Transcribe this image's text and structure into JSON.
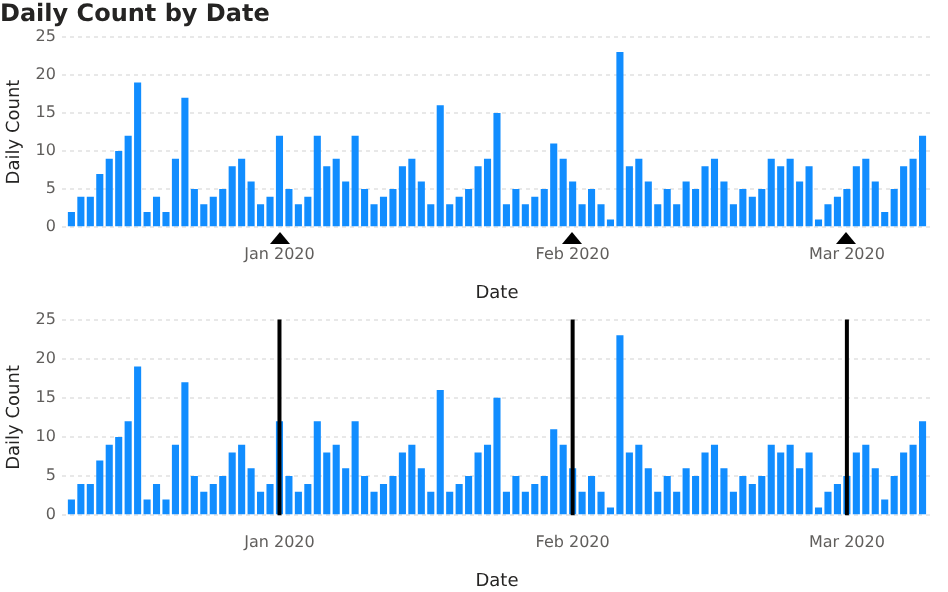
{
  "chart_data": [
    {
      "type": "bar",
      "title": "Daily Count by Date",
      "xlabel": "Date",
      "ylabel": "Daily Count",
      "color": "#118dff",
      "grid": "y",
      "x": [
        "2019-12-10",
        "2019-12-11",
        "2019-12-12",
        "2019-12-13",
        "2019-12-14",
        "2019-12-15",
        "2019-12-16",
        "2019-12-17",
        "2019-12-18",
        "2019-12-19",
        "2019-12-20",
        "2019-12-21",
        "2019-12-22",
        "2019-12-23",
        "2019-12-24",
        "2019-12-25",
        "2019-12-26",
        "2019-12-27",
        "2019-12-28",
        "2019-12-29",
        "2019-12-30",
        "2019-12-31",
        "2020-01-01",
        "2020-01-02",
        "2020-01-03",
        "2020-01-04",
        "2020-01-05",
        "2020-01-06",
        "2020-01-07",
        "2020-01-08",
        "2020-01-09",
        "2020-01-10",
        "2020-01-11",
        "2020-01-12",
        "2020-01-13",
        "2020-01-14",
        "2020-01-15",
        "2020-01-16",
        "2020-01-17",
        "2020-01-18",
        "2020-01-19",
        "2020-01-20",
        "2020-01-21",
        "2020-01-22",
        "2020-01-23",
        "2020-01-24",
        "2020-01-25",
        "2020-01-26",
        "2020-01-27",
        "2020-01-28",
        "2020-01-29",
        "2020-01-30",
        "2020-01-31",
        "2020-02-01",
        "2020-02-02",
        "2020-02-03",
        "2020-02-04",
        "2020-02-05",
        "2020-02-06",
        "2020-02-07",
        "2020-02-08",
        "2020-02-09",
        "2020-02-10",
        "2020-02-11",
        "2020-02-12",
        "2020-02-13",
        "2020-02-14",
        "2020-02-15",
        "2020-02-16",
        "2020-02-17",
        "2020-02-18",
        "2020-02-19",
        "2020-02-20",
        "2020-02-21",
        "2020-02-22",
        "2020-02-23",
        "2020-02-24",
        "2020-02-25",
        "2020-02-26",
        "2020-02-27",
        "2020-02-28",
        "2020-02-29",
        "2020-03-01",
        "2020-03-02",
        "2020-03-03",
        "2020-03-04",
        "2020-03-05",
        "2020-03-06",
        "2020-03-07",
        "2020-03-08",
        "2020-03-09"
      ],
      "values": [
        2,
        4,
        4,
        7,
        9,
        10,
        12,
        19,
        2,
        4,
        2,
        9,
        17,
        5,
        3,
        4,
        5,
        8,
        9,
        6,
        3,
        4,
        12,
        5,
        3,
        4,
        12,
        8,
        9,
        6,
        12,
        5,
        3,
        4,
        5,
        8,
        9,
        6,
        3,
        16,
        3,
        4,
        5,
        8,
        9,
        15,
        3,
        5,
        3,
        4,
        5,
        11,
        9,
        6,
        3,
        5,
        3,
        1,
        23,
        8,
        9,
        6,
        3,
        5,
        3,
        6,
        5,
        8,
        9,
        6,
        3,
        5,
        4,
        5,
        9,
        8,
        9,
        6,
        8,
        1,
        3,
        4,
        5,
        8,
        9,
        6,
        2,
        5,
        8,
        9,
        12
      ],
      "xlim": [
        "2019-12-09",
        "2020-03-10"
      ],
      "xticks": [
        {
          "value": "2020-01-01",
          "label": "Jan 2020"
        },
        {
          "value": "2020-02-01",
          "label": "Feb 2020"
        },
        {
          "value": "2020-03-01",
          "label": "Mar 2020"
        }
      ],
      "ylim": [
        0,
        25
      ],
      "yticks": [
        0,
        5,
        10,
        15,
        20,
        25
      ]
    },
    {
      "type": "bar",
      "xlabel": "Date",
      "ylabel": "Daily Count",
      "color": "#118dff",
      "grid": "y",
      "x": [
        "2019-12-10",
        "2019-12-11",
        "2019-12-12",
        "2019-12-13",
        "2019-12-14",
        "2019-12-15",
        "2019-12-16",
        "2019-12-17",
        "2019-12-18",
        "2019-12-19",
        "2019-12-20",
        "2019-12-21",
        "2019-12-22",
        "2019-12-23",
        "2019-12-24",
        "2019-12-25",
        "2019-12-26",
        "2019-12-27",
        "2019-12-28",
        "2019-12-29",
        "2019-12-30",
        "2019-12-31",
        "2020-01-01",
        "2020-01-02",
        "2020-01-03",
        "2020-01-04",
        "2020-01-05",
        "2020-01-06",
        "2020-01-07",
        "2020-01-08",
        "2020-01-09",
        "2020-01-10",
        "2020-01-11",
        "2020-01-12",
        "2020-01-13",
        "2020-01-14",
        "2020-01-15",
        "2020-01-16",
        "2020-01-17",
        "2020-01-18",
        "2020-01-19",
        "2020-01-20",
        "2020-01-21",
        "2020-01-22",
        "2020-01-23",
        "2020-01-24",
        "2020-01-25",
        "2020-01-26",
        "2020-01-27",
        "2020-01-28",
        "2020-01-29",
        "2020-01-30",
        "2020-01-31",
        "2020-02-01",
        "2020-02-02",
        "2020-02-03",
        "2020-02-04",
        "2020-02-05",
        "2020-02-06",
        "2020-02-07",
        "2020-02-08",
        "2020-02-09",
        "2020-02-10",
        "2020-02-11",
        "2020-02-12",
        "2020-02-13",
        "2020-02-14",
        "2020-02-15",
        "2020-02-16",
        "2020-02-17",
        "2020-02-18",
        "2020-02-19",
        "2020-02-20",
        "2020-02-21",
        "2020-02-22",
        "2020-02-23",
        "2020-02-24",
        "2020-02-25",
        "2020-02-26",
        "2020-02-27",
        "2020-02-28",
        "2020-02-29",
        "2020-03-01",
        "2020-03-02",
        "2020-03-03",
        "2020-03-04",
        "2020-03-05",
        "2020-03-06",
        "2020-03-07",
        "2020-03-08",
        "2020-03-09"
      ],
      "values": [
        2,
        4,
        4,
        7,
        9,
        10,
        12,
        19,
        2,
        4,
        2,
        9,
        17,
        5,
        3,
        4,
        5,
        8,
        9,
        6,
        3,
        4,
        12,
        5,
        3,
        4,
        12,
        8,
        9,
        6,
        12,
        5,
        3,
        4,
        5,
        8,
        9,
        6,
        3,
        16,
        3,
        4,
        5,
        8,
        9,
        15,
        3,
        5,
        3,
        4,
        5,
        11,
        9,
        6,
        3,
        5,
        3,
        1,
        23,
        8,
        9,
        6,
        3,
        5,
        3,
        6,
        5,
        8,
        9,
        6,
        3,
        5,
        4,
        5,
        9,
        8,
        9,
        6,
        8,
        1,
        3,
        4,
        5,
        8,
        9,
        6,
        2,
        5,
        8,
        9,
        12
      ],
      "xlim": [
        "2019-12-09",
        "2020-03-10"
      ],
      "xticks": [
        {
          "value": "2020-01-01",
          "label": "Jan 2020"
        },
        {
          "value": "2020-02-01",
          "label": "Feb 2020"
        },
        {
          "value": "2020-03-01",
          "label": "Mar 2020"
        }
      ],
      "ylim": [
        0,
        25
      ],
      "yticks": [
        0,
        5,
        10,
        15,
        20,
        25
      ],
      "ref_lines": [
        {
          "axis": "x",
          "value": "2020-01-01",
          "color": "#000000"
        },
        {
          "axis": "x",
          "value": "2020-02-01",
          "color": "#000000"
        },
        {
          "axis": "x",
          "value": "2020-03-01",
          "color": "#000000"
        }
      ]
    }
  ]
}
